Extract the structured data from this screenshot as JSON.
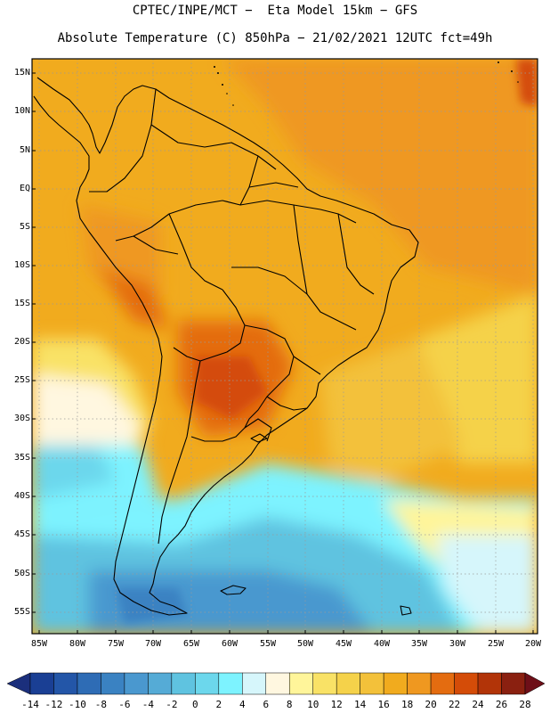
{
  "header": {
    "line1": "CPTEC/INPE/MCT −  Eta Model 15km − GFS",
    "line2": "Absolute Temperature (C) 850hPa − 21/02/2021 12UTC fct=49h"
  },
  "map": {
    "lat_labels": [
      "15N",
      "10N",
      "5N",
      "EQ",
      "5S",
      "10S",
      "15S",
      "20S",
      "25S",
      "30S",
      "35S",
      "40S",
      "45S",
      "50S",
      "55S"
    ],
    "lon_labels": [
      "85W",
      "80W",
      "75W",
      "70W",
      "65W",
      "60W",
      "55W",
      "50W",
      "45W",
      "40W",
      "35W",
      "30W",
      "25W",
      "20W"
    ]
  },
  "colorbar": {
    "labels": [
      "-14",
      "-12",
      "-10",
      "-8",
      "-6",
      "-4",
      "-2",
      "0",
      "2",
      "4",
      "6",
      "8",
      "10",
      "12",
      "14",
      "16",
      "18",
      "20",
      "22",
      "24",
      "26",
      "28"
    ],
    "colors": [
      "#1a3f94",
      "#2356a8",
      "#2e6cb5",
      "#3a82c2",
      "#4a98cf",
      "#55abd6",
      "#5fc3e0",
      "#6cd7ec",
      "#7df3ff",
      "#d6f6fb",
      "#fff7e0",
      "#fff59a",
      "#f9e266",
      "#f5d24a",
      "#f3c13a",
      "#f1ab1e",
      "#ef9820",
      "#e46c10",
      "#d44c08",
      "#b23408",
      "#8a2010"
    ]
  }
}
